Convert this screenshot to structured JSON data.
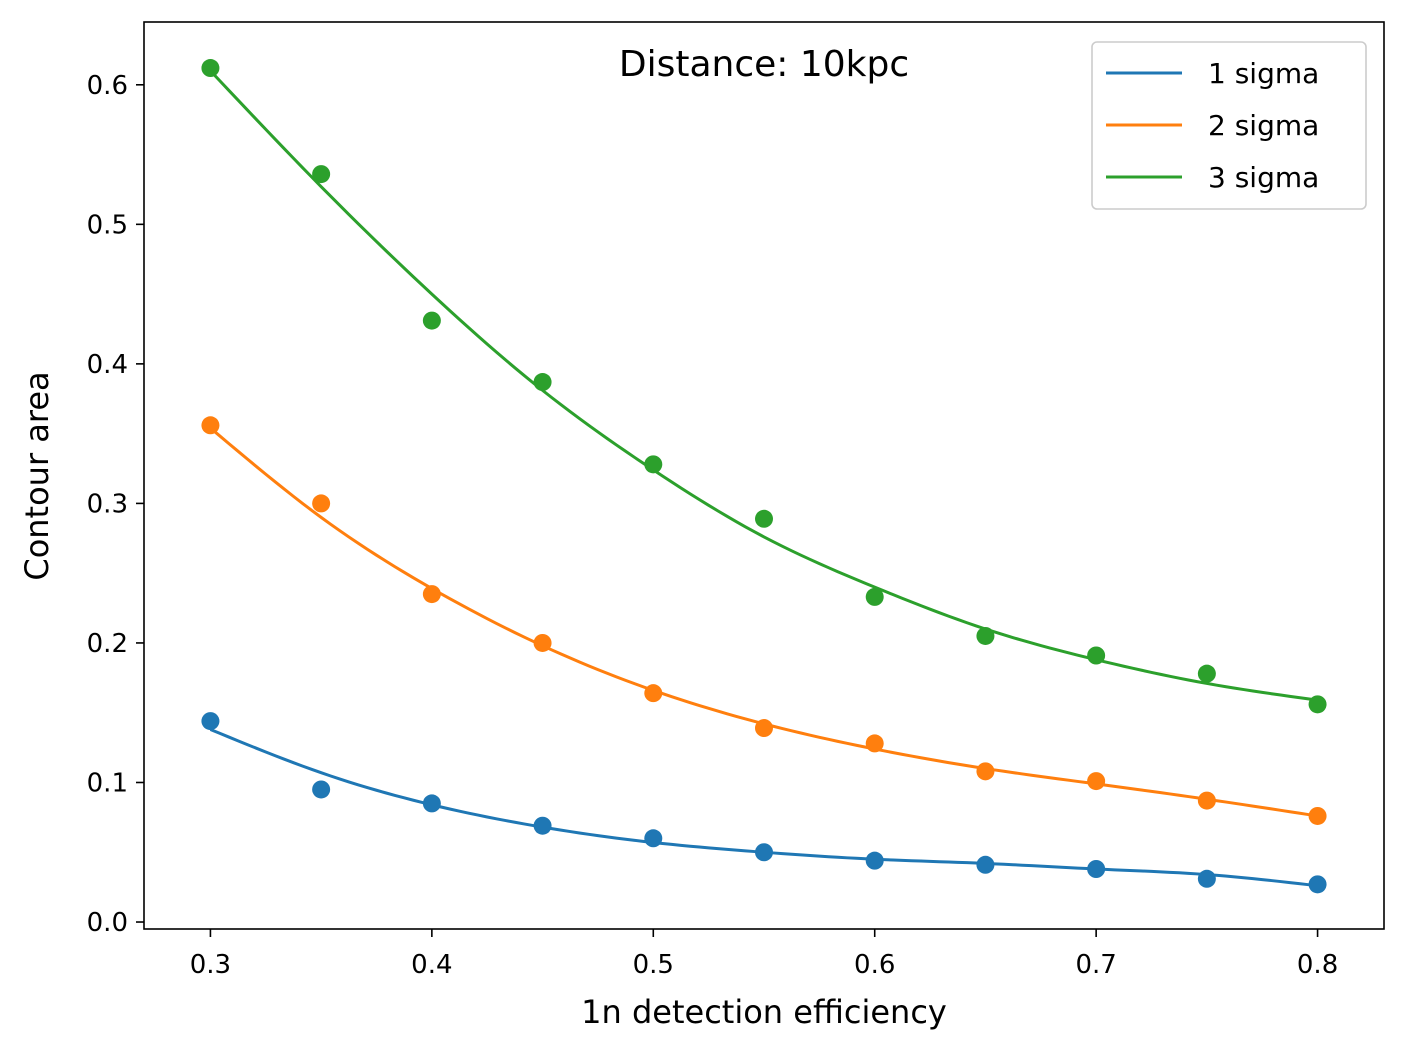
{
  "chart_data": {
    "type": "scatter",
    "title": "Distance: 10kpc",
    "xlabel": "1n detection efficiency",
    "ylabel": "Contour area",
    "xlim": [
      0.27,
      0.83
    ],
    "ylim": [
      -0.005,
      0.645
    ],
    "xticks": [
      "0.3",
      "0.4",
      "0.5",
      "0.6",
      "0.7",
      "0.8"
    ],
    "yticks": [
      "0.0",
      "0.1",
      "0.2",
      "0.3",
      "0.4",
      "0.5",
      "0.6"
    ],
    "grid": false,
    "legend_position": "top-right",
    "x": [
      0.3,
      0.35,
      0.4,
      0.45,
      0.5,
      0.55,
      0.6,
      0.65,
      0.7,
      0.75,
      0.8
    ],
    "series": [
      {
        "name": "1 sigma",
        "color": "#1f77b4",
        "points": [
          0.144,
          0.095,
          0.085,
          0.069,
          0.06,
          0.05,
          0.044,
          0.041,
          0.038,
          0.031,
          0.027
        ],
        "fit": [
          0.138,
          0.107,
          0.084,
          0.068,
          0.057,
          0.05,
          0.045,
          0.042,
          0.038,
          0.034,
          0.026
        ]
      },
      {
        "name": "2 sigma",
        "color": "#ff7f0e",
        "points": [
          0.356,
          0.3,
          0.235,
          0.2,
          0.164,
          0.139,
          0.128,
          0.108,
          0.101,
          0.087,
          0.076
        ],
        "fit": [
          0.354,
          0.29,
          0.239,
          0.198,
          0.166,
          0.142,
          0.124,
          0.11,
          0.099,
          0.088,
          0.076
        ]
      },
      {
        "name": "3 sigma",
        "color": "#2ca02c",
        "points": [
          0.612,
          0.536,
          0.431,
          0.387,
          0.328,
          0.289,
          0.233,
          0.205,
          0.191,
          0.178,
          0.156
        ],
        "fit": [
          0.61,
          0.527,
          0.45,
          0.381,
          0.324,
          0.276,
          0.24,
          0.21,
          0.188,
          0.171,
          0.159
        ]
      }
    ]
  }
}
